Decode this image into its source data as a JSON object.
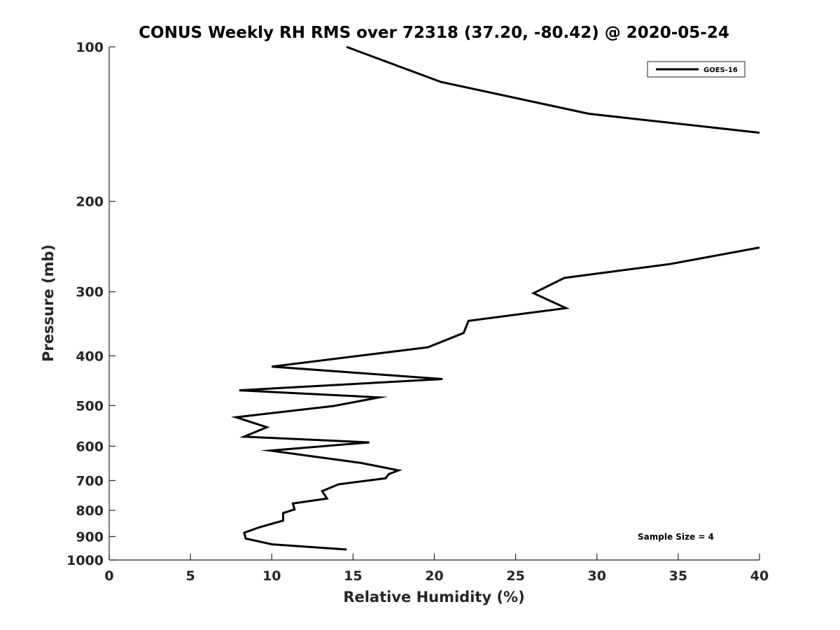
{
  "chart_data": {
    "type": "line",
    "title": "CONUS Weekly RH RMS over 72318 (37.20, -80.42) @ 2020-05-24",
    "xlabel": "Relative Humidity (%)",
    "ylabel": "Pressure (mb)",
    "xlim": [
      0,
      40
    ],
    "ylim": [
      100,
      1000
    ],
    "y_scale": "log",
    "y_reversed": true,
    "x_ticks": [
      "0",
      "5",
      "10",
      "15",
      "20",
      "25",
      "30",
      "35",
      "40"
    ],
    "y_ticks": [
      "100",
      "200",
      "300",
      "400",
      "500",
      "600",
      "700",
      "800",
      "900",
      "1000"
    ],
    "grid": false,
    "legend_position": "top-right",
    "annotation": "Sample Size = 4",
    "series": [
      {
        "name": "GOES-16",
        "color": "#000000",
        "segments": [
          {
            "x": [
              14.6,
              20.4,
              29.5,
              40.0
            ],
            "y": [
              100,
              117,
              135,
              147
            ]
          },
          {
            "x": [
              40.0,
              34.5,
              28.0,
              26.1,
              28.1,
              22.1,
              21.8,
              19.6,
              10.0,
              20.5,
              8.0,
              16.6,
              13.8,
              7.8,
              9.7,
              8.3,
              16.0,
              9.9,
              15.5,
              17.8,
              17.2,
              17.0,
              14.1,
              13.1,
              13.4,
              11.3,
              11.4,
              10.7,
              10.7,
              9.2,
              8.3,
              8.4,
              10.0,
              14.6
            ],
            "y": [
              246,
              265,
              282,
              302,
              323,
              342,
              361,
              385,
              420,
              444,
              467,
              482,
              501,
              527,
              551,
              575,
              590,
              612,
              647,
              669,
              680,
              693,
              712,
              734,
              759,
              776,
              797,
              810,
              838,
              864,
              885,
              908,
              932,
              954
            ]
          }
        ]
      }
    ]
  }
}
